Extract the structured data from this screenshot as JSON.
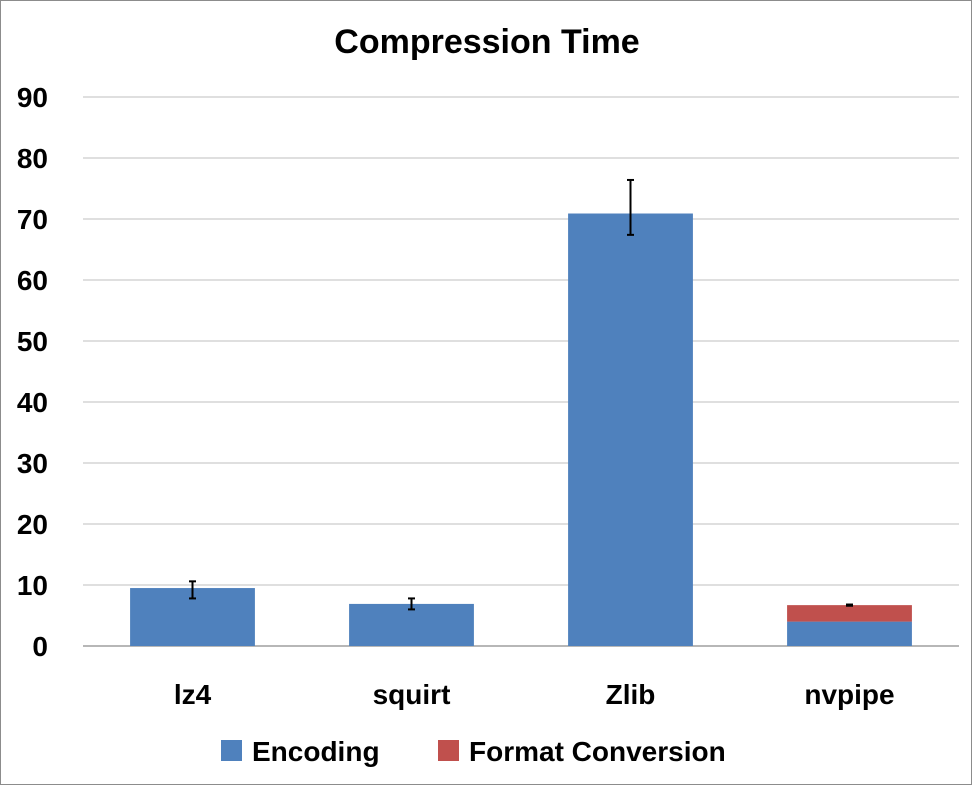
{
  "chart_data": {
    "type": "bar",
    "stacked": true,
    "title": "Compression Time",
    "xlabel": "",
    "ylabel": "",
    "ylim": [
      0,
      90
    ],
    "yticks": [
      0,
      10,
      20,
      30,
      40,
      50,
      60,
      70,
      80,
      90
    ],
    "grid": true,
    "legend_position": "bottom",
    "categories": [
      "lz4",
      "squirt",
      "Zlib",
      "nvpipe"
    ],
    "series": [
      {
        "name": "Encoding",
        "color": "#4F81BD",
        "values": [
          9.5,
          6.9,
          70.9,
          4.0
        ]
      },
      {
        "name": "Format Conversion",
        "color": "#C0504D",
        "values": [
          0,
          0,
          0,
          2.7
        ]
      }
    ],
    "error_bars": [
      {
        "low": 7.8,
        "high": 10.6
      },
      {
        "low": 6.0,
        "high": 7.8
      },
      {
        "low": 67.4,
        "high": 76.4
      },
      {
        "low": 6.6,
        "high": 6.8
      }
    ]
  }
}
